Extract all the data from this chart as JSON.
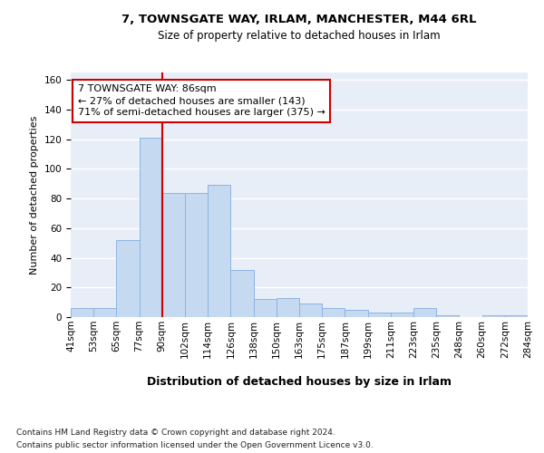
{
  "title_line1": "7, TOWNSGATE WAY, IRLAM, MANCHESTER, M44 6RL",
  "title_line2": "Size of property relative to detached houses in Irlam",
  "xlabel": "Distribution of detached houses by size in Irlam",
  "ylabel": "Number of detached properties",
  "footnote_line1": "Contains HM Land Registry data © Crown copyright and database right 2024.",
  "footnote_line2": "Contains public sector information licensed under the Open Government Licence v3.0.",
  "bar_left_edges": [
    "41sqm",
    "53sqm",
    "65sqm",
    "77sqm",
    "90sqm",
    "102sqm",
    "114sqm",
    "126sqm",
    "138sqm",
    "150sqm",
    "163sqm",
    "175sqm",
    "187sqm",
    "199sqm",
    "211sqm",
    "223sqm",
    "235sqm",
    "248sqm",
    "260sqm",
    "272sqm",
    "284sqm"
  ],
  "bar_values": [
    6,
    6,
    52,
    121,
    84,
    84,
    89,
    32,
    12,
    13,
    9,
    6,
    5,
    3,
    3,
    6,
    1,
    0,
    1,
    1
  ],
  "bar_color": "#C5D9F1",
  "bar_edge_color": "#8DB4E2",
  "vline_color": "#CC0000",
  "vline_x": 4,
  "annotation_text": "7 TOWNSGATE WAY: 86sqm\n← 27% of detached houses are smaller (143)\n71% of semi-detached houses are larger (375) →",
  "ylim_max": 165,
  "yticks": [
    0,
    20,
    40,
    60,
    80,
    100,
    120,
    140,
    160
  ],
  "bg_color": "#E8EEF8",
  "grid_color": "#FFFFFF",
  "fig_bg": "#FFFFFF",
  "title1_fontsize": 9.5,
  "title2_fontsize": 8.5,
  "ylabel_fontsize": 8,
  "xlabel_fontsize": 9,
  "tick_fontsize": 7.5,
  "footnote_fontsize": 6.5,
  "annot_fontsize": 8
}
